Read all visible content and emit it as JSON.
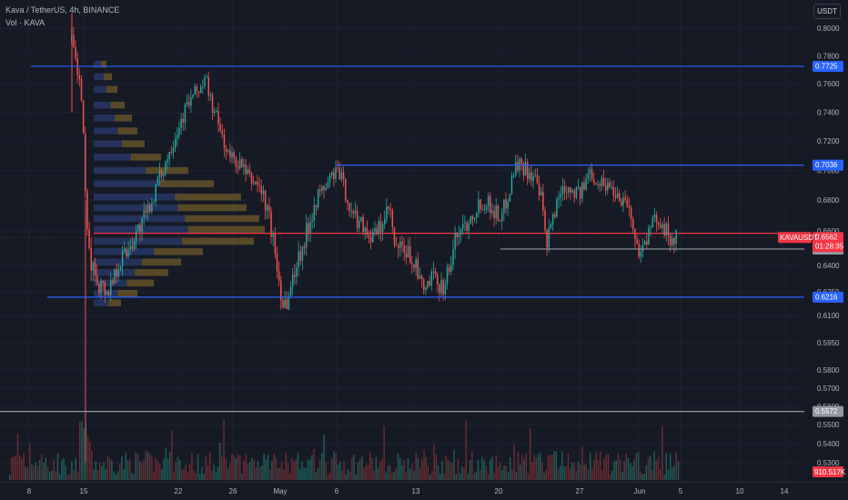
{
  "header": {
    "symbol_line": "Kava / TetherUS, 4h, BINANCE",
    "volume_line": "Vol · KAVA",
    "currency": "USDT"
  },
  "chart_data": {
    "type": "candlestick",
    "symbol": "KAVAUSDT",
    "timeframe": "4h",
    "exchange": "BINANCE",
    "quote": "USDT",
    "y_ticks": [
      "0.8000",
      "0.7800",
      "0.7600",
      "0.7400",
      "0.7200",
      "0.7000",
      "0.6800",
      "0.6600",
      "0.6400",
      "0.6250",
      "0.6100",
      "0.5950",
      "0.5800",
      "0.5700",
      "0.5600",
      "0.5500",
      "0.5400",
      "0.5300"
    ],
    "x_ticks": [
      "8",
      "15",
      "22",
      "26",
      "May",
      "6",
      "13",
      "20",
      "27",
      "Jun",
      "5",
      "10",
      "14"
    ],
    "horizontal_levels": [
      {
        "value": 0.7725,
        "label": "0.7725",
        "color": "#2962ff"
      },
      {
        "value": 0.7036,
        "label": "0.7036",
        "color": "#2962ff"
      },
      {
        "value": 0.6216,
        "label": "0.6216",
        "color": "#2962ff"
      },
      {
        "value": 0.6495,
        "label": "0.6495",
        "color": "#9598a1"
      },
      {
        "value": 0.5572,
        "label": "0.5572",
        "color": "#9598a1"
      }
    ],
    "point_of_control": 0.6586,
    "last_price": {
      "symbol_label": "KAVAUSDT",
      "value": "0.6562",
      "countdown": "01:28:35",
      "color": "#f23645"
    },
    "volume_last": "910.517K",
    "colors": {
      "up": "#26a69a",
      "down": "#ef5350",
      "bg": "#161a25"
    }
  }
}
